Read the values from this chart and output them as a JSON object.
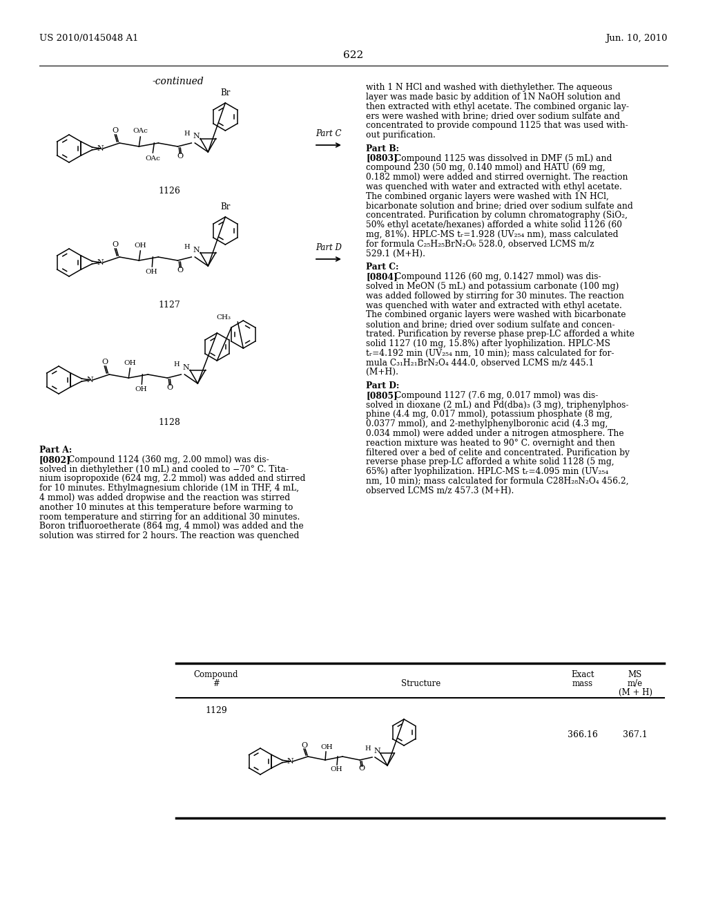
{
  "background_color": "#ffffff",
  "page_number": "622",
  "header_left": "US 2010/0145048 A1",
  "header_right": "Jun. 10, 2010",
  "continued_label": "-continued",
  "right_col_lines_top": [
    "with 1 N HCl and washed with diethylether. The aqueous",
    "layer was made basic by addition of 1N NaOH solution and",
    "then extracted with ethyl acetate. The combined organic lay-",
    "ers were washed with brine; dried over sodium sulfate and",
    "concentrated to provide compound 1125 that was used with-",
    "out purification."
  ],
  "part_b_lines": [
    "Part B:",
    "[0803]    Compound 1125 was dissolved in DMF (5 mL) and",
    "compound 230 (50 mg, 0.140 mmol) and HATU (69 mg,",
    "0.182 mmol) were added and stirred overnight. The reaction",
    "was quenched with water and extracted with ethyl acetate.",
    "The combined organic layers were washed with 1N HCl,",
    "bicarbonate solution and brine; dried over sodium sulfate and",
    "concentrated. Purification by column chromatography (SiO₂,",
    "50% ethyl acetate/hexanes) afforded a white solid 1126 (60",
    "mg, 81%). HPLC-MS tᵣ=1.928 (UV₂₅₄ nm), mass calculated",
    "for formula C₂₅H₂₅BrN₂O₆ 528.0, observed LCMS m/z",
    "529.1 (M+H)."
  ],
  "part_c_lines": [
    "Part C:",
    "[0804]    Compound 1126 (60 mg, 0.1427 mmol) was dis-",
    "solved in MeON (5 mL) and potassium carbonate (100 mg)",
    "was added followed by stirring for 30 minutes. The reaction",
    "was quenched with water and extracted with ethyl acetate.",
    "The combined organic layers were washed with bicarbonate",
    "solution and brine; dried over sodium sulfate and concen-",
    "trated. Purification by reverse phase prep-LC afforded a white",
    "solid 1127 (10 mg, 15.8%) after lyophilization. HPLC-MS",
    "tᵣ=4.192 min (UV₂₅₄ nm, 10 min); mass calculated for for-",
    "mula C₃₁H₂₁BrN₂O₄ 444.0, observed LCMS m/z 445.1",
    "(M+H)."
  ],
  "part_d_lines": [
    "Part D:",
    "[0805]    Compound 1127 (7.6 mg, 0.017 mmol) was dis-",
    "solved in dioxane (2 mL) and Pd(dba)₃ (3 mg), triphenylphos-",
    "phine (4.4 mg, 0.017 mmol), potassium phosphate (8 mg,",
    "0.0377 mmol), and 2-methylphenylboronic acid (4.3 mg,",
    "0.034 mmol) were added under a nitrogen atmosphere. The",
    "reaction mixture was heated to 90° C. overnight and then",
    "filtered over a bed of celite and concentrated. Purification by",
    "reverse phase prep-LC afforded a white solid 1128 (5 mg,",
    "65%) after lyophilization. HPLC-MS tᵣ=4.095 min (UV₂₅₄",
    "nm, 10 min); mass calculated for formula C28H₂₈N₂O₄ 456.2,",
    "observed LCMS m/z 457.3 (M+H)."
  ],
  "part_a_lines": [
    "Part A:",
    "[0802]    Compound 1124 (360 mg, 2.00 mmol) was dis-",
    "solved in diethylether (10 mL) and cooled to −70° C. Tita-",
    "nium isopropoxide (624 mg, 2.2 mmol) was added and stirred",
    "for 10 minutes. Ethylmagnesium chloride (1M in THF, 4 mL,",
    "4 mmol) was added dropwise and the reaction was stirred",
    "another 10 minutes at this temperature before warming to",
    "room temperature and stirring for an additional 30 minutes.",
    "Boron trifluoroetherate (864 mg, 4 mmol) was added and the",
    "solution was stirred for 2 hours. The reaction was quenched"
  ],
  "struct_labels": [
    "1126",
    "1127",
    "1128"
  ],
  "table_compound": "1129",
  "table_exact": "366.16",
  "table_ms": "367.1"
}
